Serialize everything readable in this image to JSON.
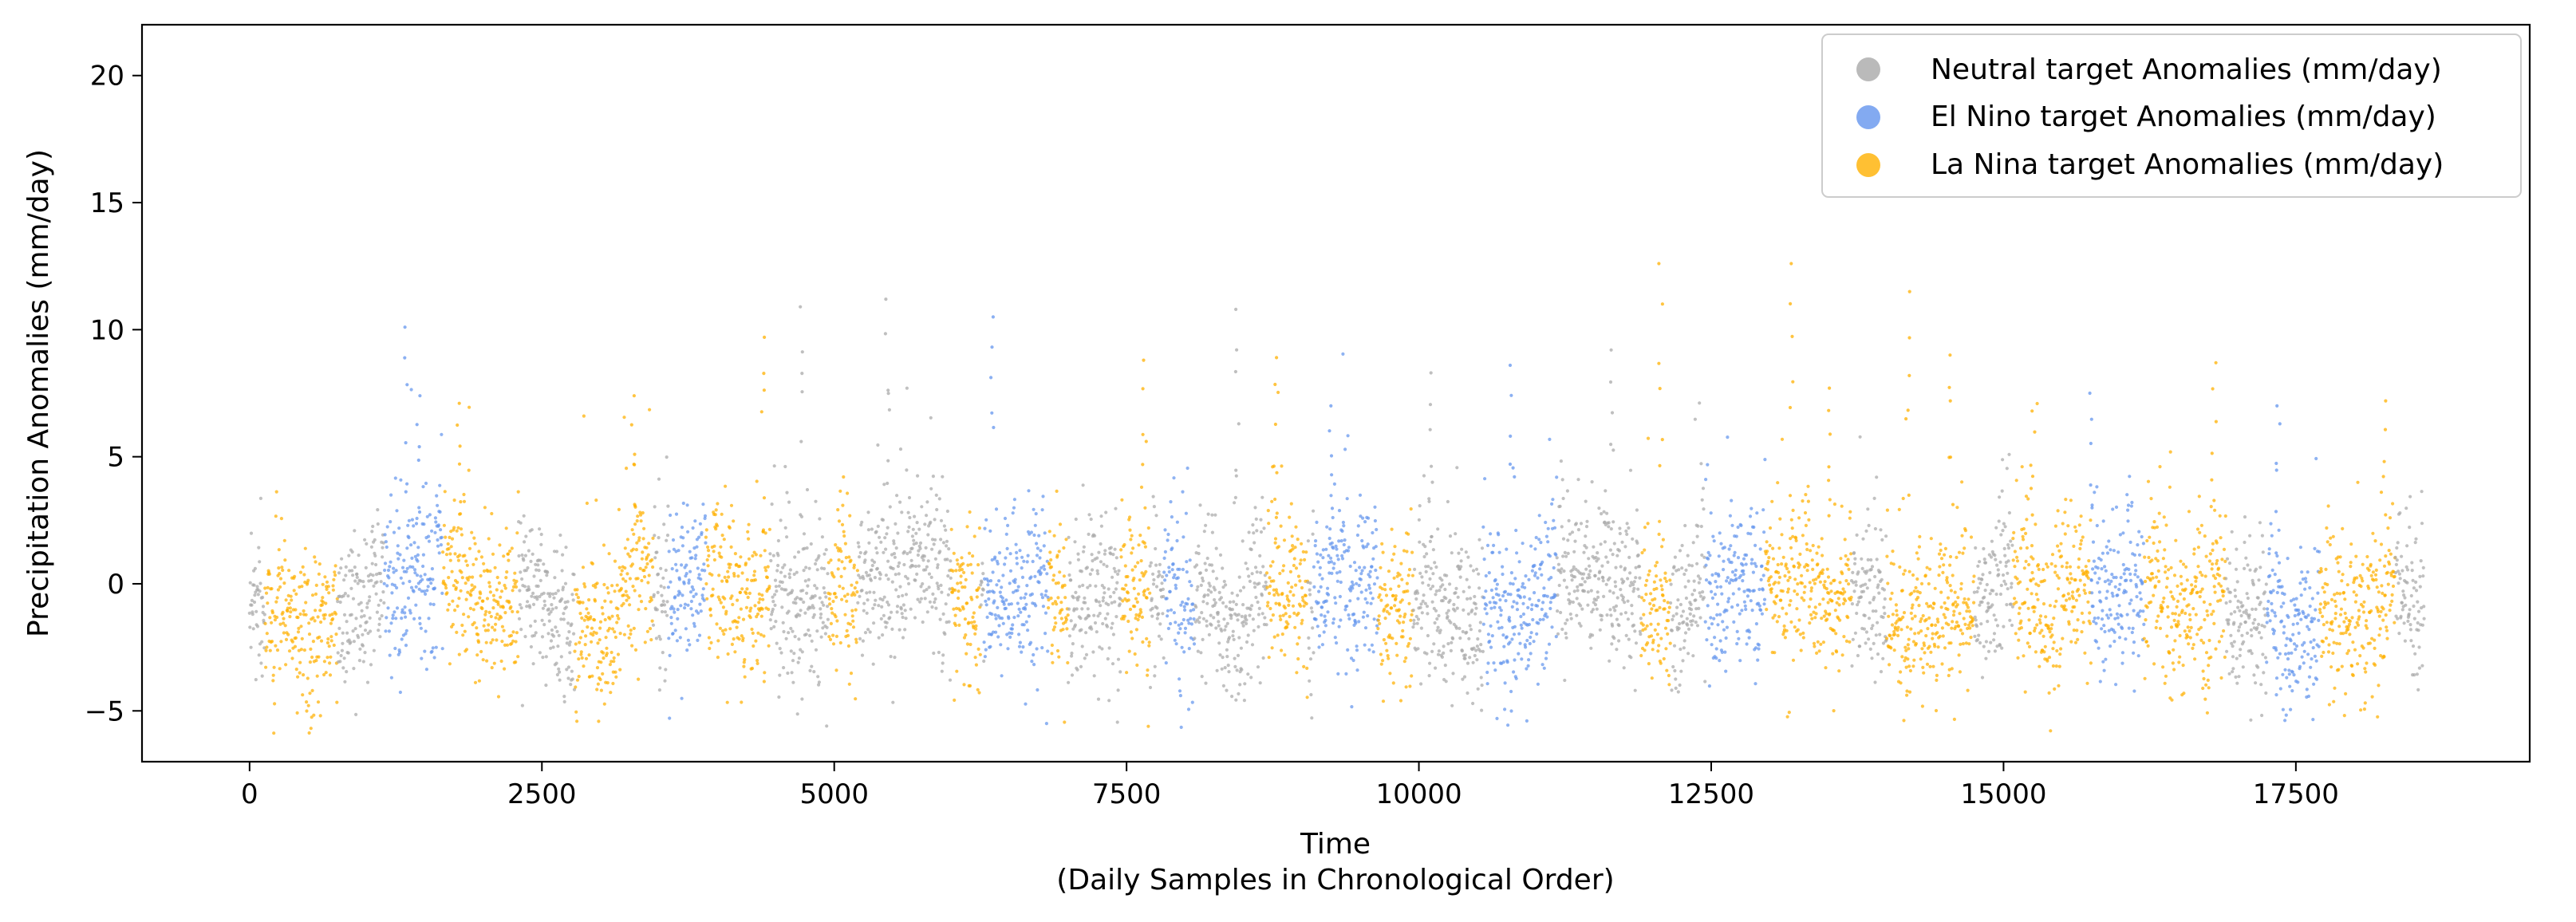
{
  "chart_data": {
    "type": "scatter",
    "title": "",
    "xlabel": "Time",
    "xlabel_sub": "(Daily Samples in Chronological Order)",
    "ylabel": "Precipitation Anomalies (mm/day)",
    "xlim": [
      -920,
      19500
    ],
    "ylim": [
      -7,
      22
    ],
    "xticks": [
      0,
      2500,
      5000,
      7500,
      10000,
      12500,
      15000,
      17500
    ],
    "xtick_labels": [
      "0",
      "2500",
      "5000",
      "7500",
      "10000",
      "12500",
      "15000",
      "17500"
    ],
    "yticks": [
      -5,
      0,
      5,
      10,
      15,
      20
    ],
    "ytick_labels": [
      "−5",
      "0",
      "5",
      "10",
      "15",
      "20"
    ],
    "grid": false,
    "legend_position": "top-right",
    "n_samples": 18600,
    "series": [
      {
        "name": "Neutral target Anomalies (mm/day)",
        "color": "#a9a9a9",
        "segments": []
      },
      {
        "name": "El Nino target Anomalies (mm/day)",
        "color": "#6495ed",
        "segments": [
          [
            1150,
            1650
          ],
          [
            3580,
            3900
          ],
          [
            6280,
            6830
          ],
          [
            7820,
            8080
          ],
          [
            9100,
            9650
          ],
          [
            10550,
            11180
          ],
          [
            12450,
            12960
          ],
          [
            15750,
            16200
          ],
          [
            17250,
            17700
          ]
        ]
      },
      {
        "name": "La Nina target Anomalies (mm/day)",
        "color": "#ffb000",
        "segments": [
          [
            130,
            750
          ],
          [
            1650,
            2300
          ],
          [
            2780,
            3450
          ],
          [
            3900,
            4450
          ],
          [
            4950,
            5200
          ],
          [
            6000,
            6250
          ],
          [
            6830,
            7000
          ],
          [
            7450,
            7700
          ],
          [
            8700,
            9050
          ],
          [
            9650,
            9950
          ],
          [
            11900,
            12150
          ],
          [
            12960,
            13700
          ],
          [
            14000,
            14750
          ],
          [
            15080,
            15750
          ],
          [
            16200,
            16900
          ],
          [
            17700,
            18350
          ]
        ]
      }
    ],
    "peaks": [
      {
        "x": 1330,
        "y": 10.1
      },
      {
        "x": 1440,
        "y": 7.4
      },
      {
        "x": 1790,
        "y": 7.1
      },
      {
        "x": 3280,
        "y": 7.4
      },
      {
        "x": 4390,
        "y": 9.7
      },
      {
        "x": 4730,
        "y": 10.9
      },
      {
        "x": 5450,
        "y": 11.2
      },
      {
        "x": 6350,
        "y": 10.5
      },
      {
        "x": 7650,
        "y": 8.8
      },
      {
        "x": 8450,
        "y": 10.8
      },
      {
        "x": 8770,
        "y": 8.9
      },
      {
        "x": 9250,
        "y": 7.0
      },
      {
        "x": 10100,
        "y": 8.3
      },
      {
        "x": 10800,
        "y": 8.6
      },
      {
        "x": 11650,
        "y": 9.2
      },
      {
        "x": 12070,
        "y": 12.6
      },
      {
        "x": 13180,
        "y": 12.6
      },
      {
        "x": 13500,
        "y": 7.7
      },
      {
        "x": 14180,
        "y": 11.5
      },
      {
        "x": 14550,
        "y": 9.0
      },
      {
        "x": 15250,
        "y": 6.8
      },
      {
        "x": 15750,
        "y": 7.5
      },
      {
        "x": 16800,
        "y": 8.7
      },
      {
        "x": 17350,
        "y": 7.0
      },
      {
        "x": 18250,
        "y": 7.2
      }
    ]
  }
}
